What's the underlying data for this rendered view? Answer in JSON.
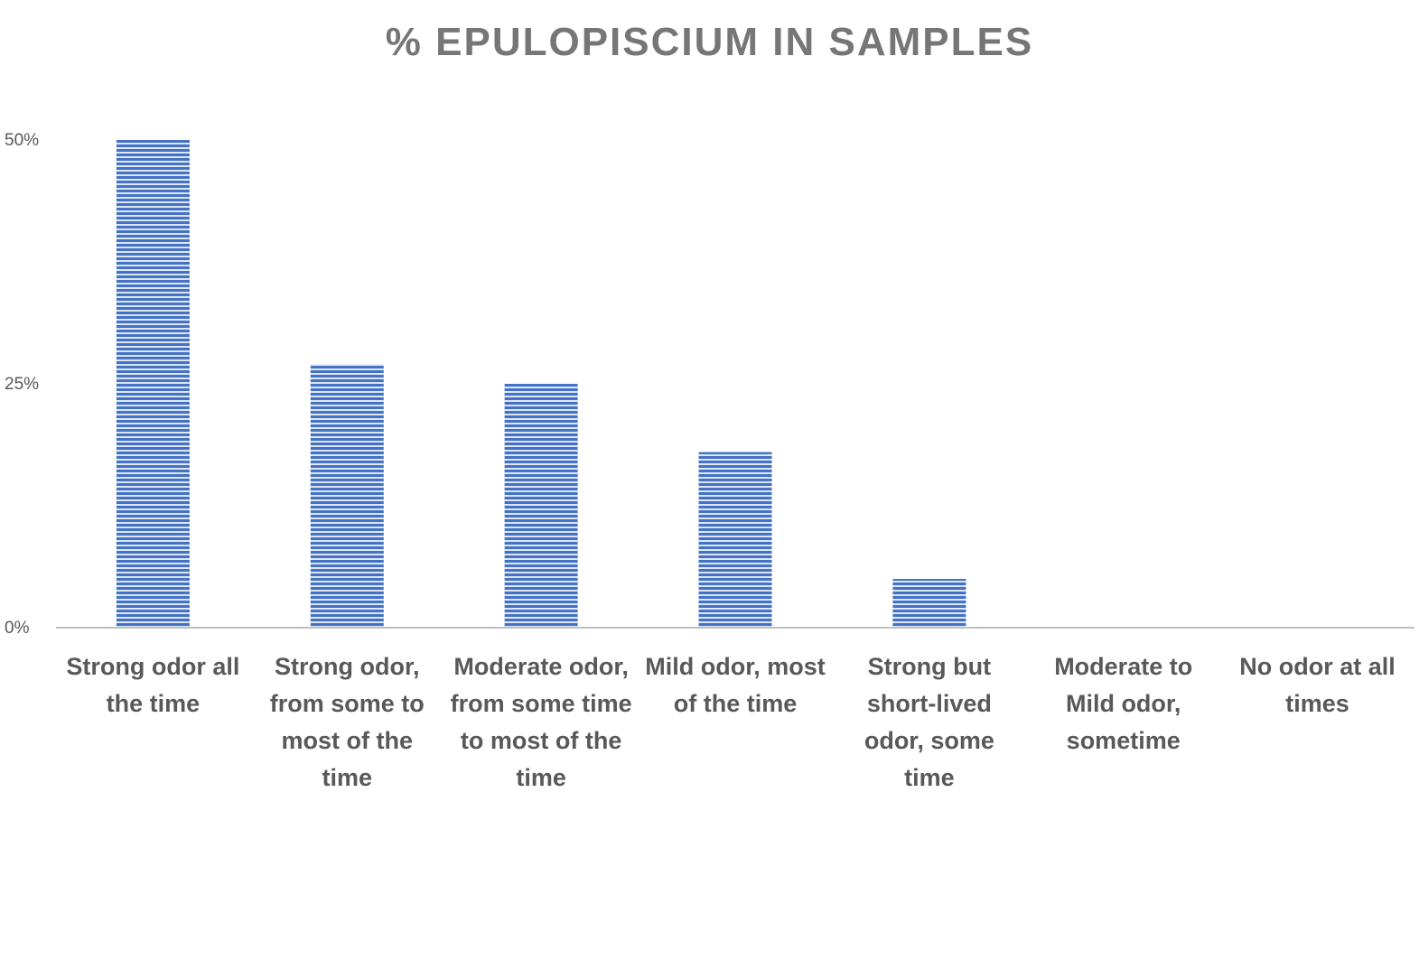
{
  "chart_data": {
    "type": "bar",
    "title": "% EPULOPISCIUM IN SAMPLES",
    "xlabel": "",
    "ylabel": "",
    "ylim": [
      0,
      0.5
    ],
    "y_ticks": [
      {
        "value": 0,
        "label": "0%"
      },
      {
        "value": 0.25,
        "label": "25%"
      },
      {
        "value": 0.5,
        "label": "50%"
      }
    ],
    "categories": [
      "Strong odor all the time",
      "Strong odor, from some to most of the time",
      "Moderate odor, from some time to most of the time",
      "Mild odor, most of the time",
      "Strong but short-lived odor, some time",
      "Moderate to Mild odor, sometime",
      "No odor at all times"
    ],
    "values": [
      0.5,
      0.27,
      0.25,
      0.18,
      0.05,
      0,
      0
    ],
    "grid": false,
    "legend": "none",
    "colors": {
      "bar": "#4472c4",
      "bar_light": "#dce6f5",
      "axis": "#bfbfbf",
      "title": "#767676",
      "text": "#595959"
    }
  }
}
